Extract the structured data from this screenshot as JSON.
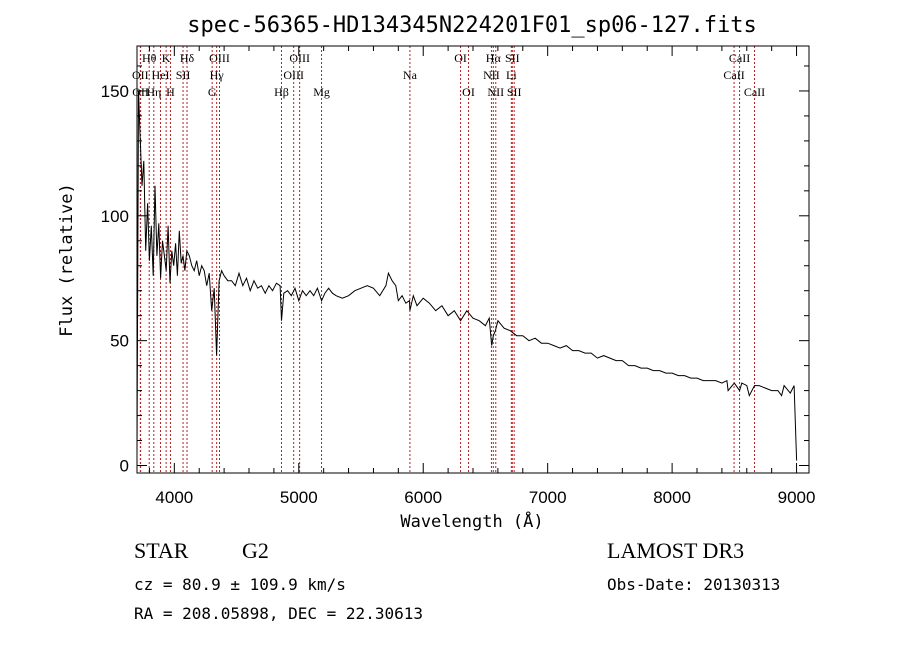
{
  "chart_data": {
    "type": "line",
    "title": "spec-56365-HD134345N224201F01_sp06-127.fits",
    "xlabel": "Wavelength (Å)",
    "ylabel": "Flux (relative)",
    "xlim": [
      3700,
      9100
    ],
    "ylim": [
      -3,
      168
    ],
    "x_ticks": [
      4000,
      5000,
      6000,
      7000,
      8000,
      9000
    ],
    "y_ticks": [
      0,
      50,
      100,
      150
    ],
    "series": [
      {
        "name": "flux",
        "x": [
          3700,
          3712,
          3725,
          3740,
          3755,
          3770,
          3785,
          3800,
          3815,
          3830,
          3845,
          3860,
          3875,
          3890,
          3905,
          3920,
          3935,
          3950,
          3965,
          3980,
          3995,
          4010,
          4025,
          4040,
          4055,
          4070,
          4085,
          4100,
          4120,
          4140,
          4160,
          4180,
          4200,
          4220,
          4240,
          4260,
          4280,
          4300,
          4320,
          4340,
          4360,
          4380,
          4400,
          4430,
          4460,
          4490,
          4520,
          4550,
          4580,
          4610,
          4640,
          4670,
          4700,
          4730,
          4760,
          4790,
          4820,
          4850,
          4861,
          4880,
          4910,
          4940,
          4970,
          5000,
          5030,
          5060,
          5090,
          5120,
          5150,
          5183,
          5210,
          5240,
          5270,
          5300,
          5350,
          5400,
          5450,
          5500,
          5550,
          5600,
          5650,
          5700,
          5720,
          5750,
          5780,
          5800,
          5830,
          5860,
          5890,
          5893,
          5920,
          5950,
          6000,
          6050,
          6100,
          6150,
          6200,
          6250,
          6300,
          6350,
          6400,
          6450,
          6500,
          6530,
          6550,
          6563,
          6580,
          6600,
          6650,
          6700,
          6750,
          6800,
          6850,
          6900,
          6950,
          7000,
          7050,
          7100,
          7150,
          7200,
          7250,
          7300,
          7350,
          7400,
          7450,
          7500,
          7550,
          7600,
          7650,
          7700,
          7750,
          7800,
          7850,
          7900,
          7950,
          8000,
          8050,
          8100,
          8150,
          8200,
          8250,
          8300,
          8350,
          8400,
          8440,
          8450,
          8500,
          8542,
          8560,
          8600,
          8620,
          8662,
          8680,
          8700,
          8750,
          8800,
          8850,
          8880,
          8900,
          8950,
          8980,
          9000
        ],
        "values": [
          5,
          150,
          132,
          112,
          122,
          86,
          105,
          82,
          96,
          76,
          112,
          84,
          97,
          75,
          90,
          84,
          78,
          96,
          73,
          86,
          80,
          89,
          76,
          94,
          81,
          84,
          78,
          86,
          84,
          80,
          78,
          82,
          76,
          80,
          78,
          72,
          77,
          62,
          71,
          44,
          74,
          78,
          76,
          74,
          74,
          72,
          77,
          72,
          75,
          70,
          74,
          71,
          72,
          69,
          72,
          70,
          73,
          72,
          58,
          69,
          70,
          68,
          71,
          66,
          70,
          68,
          70,
          68,
          71,
          66,
          69,
          71,
          69,
          68,
          67,
          68,
          70,
          71,
          72,
          71,
          68,
          72,
          77,
          74,
          72,
          66,
          68,
          65,
          66,
          62,
          68,
          64,
          67,
          65,
          62,
          64,
          60,
          62,
          58,
          62,
          59,
          58,
          56,
          59,
          48,
          52,
          54,
          58,
          55,
          54,
          52,
          52,
          50,
          51,
          49,
          49,
          48,
          47,
          48,
          46,
          46,
          45,
          45,
          43,
          44,
          43,
          42,
          42,
          40,
          40,
          39,
          39,
          38,
          38,
          37,
          37,
          36,
          36,
          35,
          35,
          34,
          34,
          34,
          33,
          34,
          30,
          33,
          30,
          33,
          32,
          28,
          32,
          32,
          32,
          31,
          30,
          30,
          28,
          32,
          29,
          32,
          2
        ]
      }
    ],
    "line_markers": [
      {
        "label": "OII",
        "wavelength": 3727,
        "row": 2
      },
      {
        "label": "OII",
        "wavelength": 3729,
        "row": 3
      },
      {
        "label": "Hθ",
        "wavelength": 3798,
        "row": 1
      },
      {
        "label": "Hη",
        "wavelength": 3835,
        "row": 3
      },
      {
        "label": "HeI",
        "wavelength": 3889,
        "row": 2
      },
      {
        "label": "K",
        "wavelength": 3934,
        "row": 1
      },
      {
        "label": "H",
        "wavelength": 3969,
        "row": 3
      },
      {
        "label": "SII",
        "wavelength": 4070,
        "row": 2
      },
      {
        "label": "Hδ",
        "wavelength": 4102,
        "row": 1
      },
      {
        "label": "G",
        "wavelength": 4304,
        "row": 3
      },
      {
        "label": "Hγ",
        "wavelength": 4340,
        "row": 2
      },
      {
        "label": "OIII",
        "wavelength": 4363,
        "row": 1
      },
      {
        "label": "Hβ",
        "wavelength": 4861,
        "row": 3
      },
      {
        "label": "OIII",
        "wavelength": 4959,
        "row": 2
      },
      {
        "label": "OIII",
        "wavelength": 5007,
        "row": 1
      },
      {
        "label": "Mg",
        "wavelength": 5183,
        "row": 3
      },
      {
        "label": "Na",
        "wavelength": 5893,
        "row": 2
      },
      {
        "label": "OI",
        "wavelength": 6300,
        "row": 1
      },
      {
        "label": "OI",
        "wavelength": 6364,
        "row": 3
      },
      {
        "label": "NII",
        "wavelength": 6548,
        "row": 2
      },
      {
        "label": "Hα",
        "wavelength": 6563,
        "row": 1
      },
      {
        "label": "NII",
        "wavelength": 6583,
        "row": 3
      },
      {
        "label": "Li",
        "wavelength": 6708,
        "row": 2
      },
      {
        "label": "SII",
        "wavelength": 6716,
        "row": 1
      },
      {
        "label": "SII",
        "wavelength": 6731,
        "row": 3
      },
      {
        "label": "CaII",
        "wavelength": 8498,
        "row": 2
      },
      {
        "label": "CaII",
        "wavelength": 8542,
        "row": 1
      },
      {
        "label": "CaII",
        "wavelength": 8662,
        "row": 3
      }
    ]
  },
  "info": {
    "object_class": "STAR",
    "subclass": "G2",
    "survey": "LAMOST DR3",
    "redshift_line": "cz = 80.9 ± 109.9 km/s",
    "obs_date_line": "Obs-Date: 20130313",
    "coords_line": "RA = 208.05898, DEC =  22.30613"
  }
}
